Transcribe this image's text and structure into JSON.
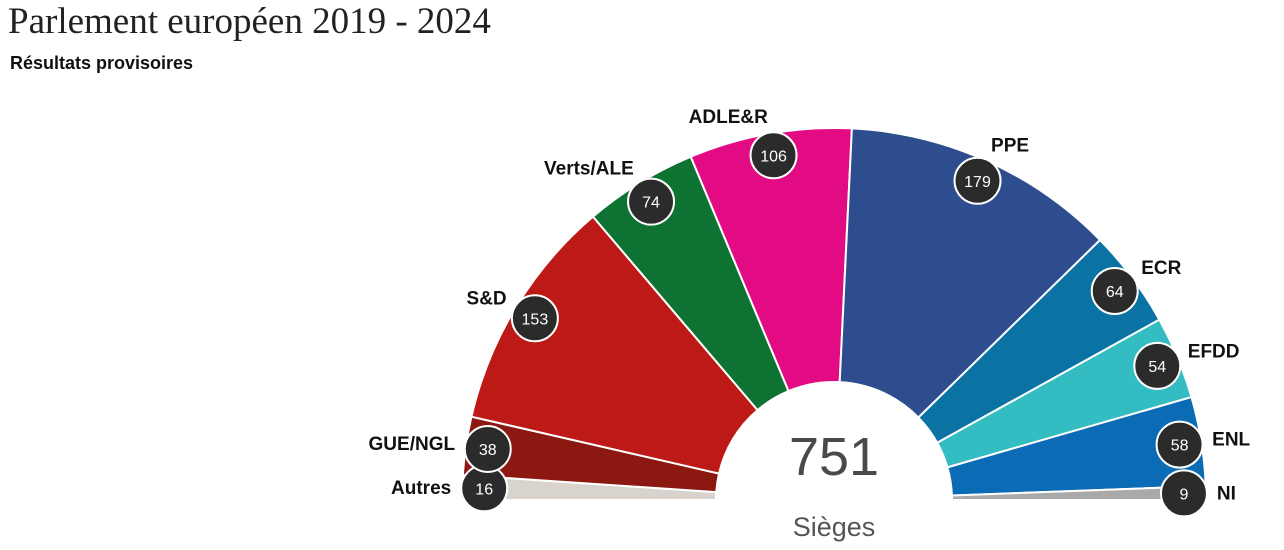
{
  "title": "Parlement européen 2019 - 2024",
  "subtitle": "Résultats provisoires",
  "chart_data": {
    "type": "pie",
    "shape": "half-donut (hemicycle)",
    "total": 751,
    "total_label": "Sièges",
    "series": [
      {
        "name": "Autres",
        "value": 16,
        "color": "#d8d4cd"
      },
      {
        "name": "GUE/NGL",
        "value": 38,
        "color": "#8b1811"
      },
      {
        "name": "S&D",
        "value": 153,
        "color": "#bd1a17"
      },
      {
        "name": "Verts/ALE",
        "value": 74,
        "color": "#0e7332"
      },
      {
        "name": "ADLE&R",
        "value": 106,
        "color": "#e30b83"
      },
      {
        "name": "PPE",
        "value": 179,
        "color": "#2e4d8f"
      },
      {
        "name": "ECR",
        "value": 64,
        "color": "#0a73a3"
      },
      {
        "name": "EFDD",
        "value": 54,
        "color": "#33bcc2"
      },
      {
        "name": "ENL",
        "value": 58,
        "color": "#0b6cb5"
      },
      {
        "name": "NI",
        "value": 9,
        "color": "#a9a9a9"
      }
    ]
  }
}
